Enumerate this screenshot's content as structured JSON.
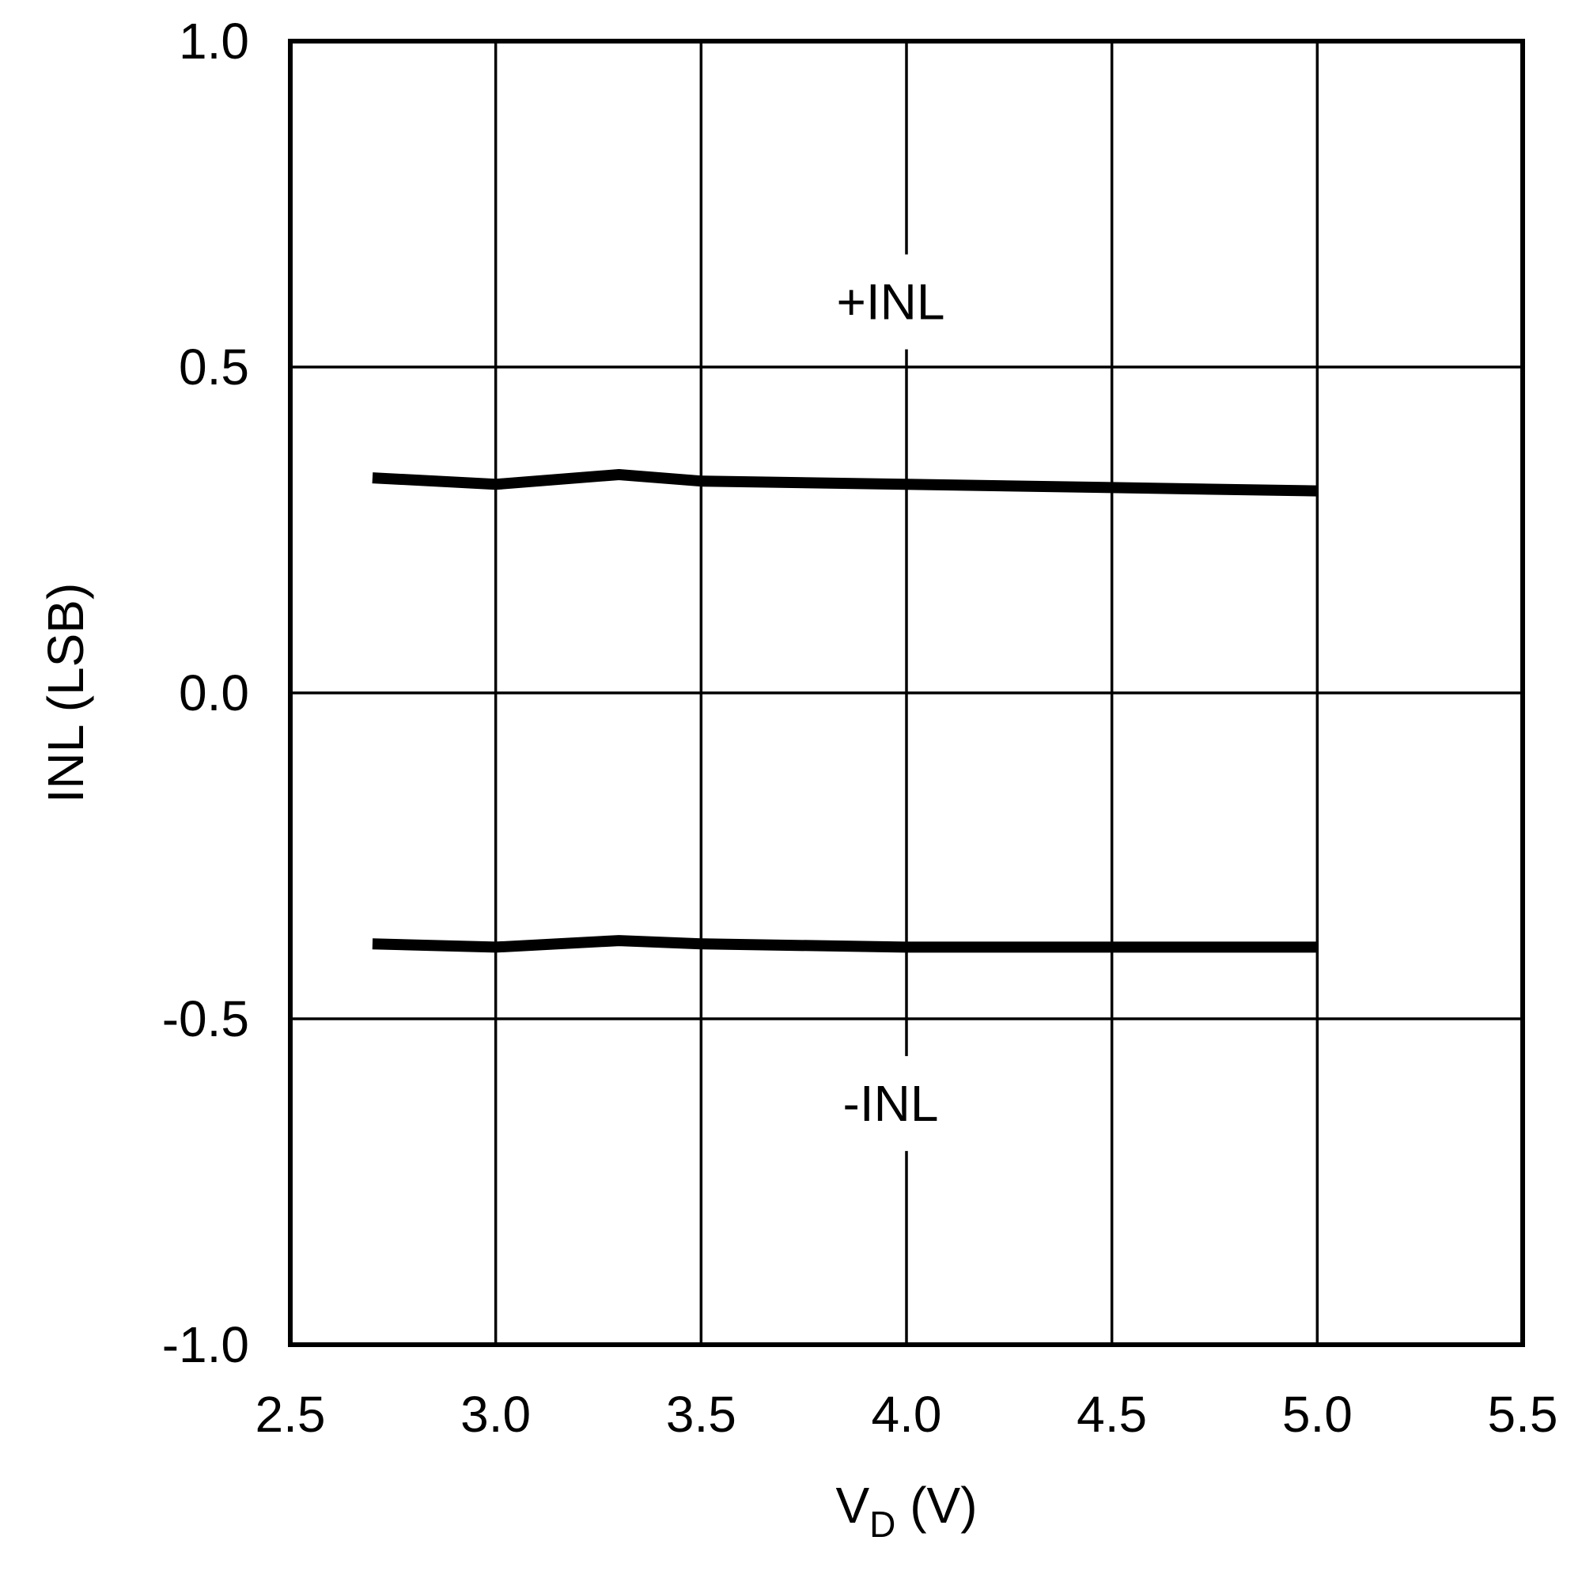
{
  "chart_data": {
    "type": "line",
    "xlabel": {
      "main": "V",
      "sub": "D",
      "unit": " (V)"
    },
    "ylabel": "INL (LSB)",
    "xlim": [
      2.5,
      5.5
    ],
    "ylim": [
      -1.0,
      1.0
    ],
    "xticks": [
      "2.5",
      "3.0",
      "3.5",
      "4.0",
      "4.5",
      "5.0",
      "5.5"
    ],
    "yticks": [
      "1.0",
      "0.5",
      "0.0",
      "-0.5",
      "-1.0"
    ],
    "grid": true,
    "series": [
      {
        "name": "+INL",
        "x": [
          2.7,
          3.0,
          3.3,
          3.5,
          4.0,
          4.5,
          5.0
        ],
        "y": [
          0.33,
          0.32,
          0.335,
          0.325,
          0.32,
          0.315,
          0.31
        ]
      },
      {
        "name": "-INL",
        "x": [
          2.7,
          3.0,
          3.3,
          3.5,
          4.0,
          4.5,
          5.0
        ],
        "y": [
          -0.385,
          -0.39,
          -0.38,
          -0.385,
          -0.39,
          -0.39,
          -0.39
        ]
      }
    ],
    "annotations": [
      {
        "text": "+INL",
        "x": 4.0,
        "y": 0.6
      },
      {
        "text": "-INL",
        "x": 4.0,
        "y": -0.63
      }
    ],
    "colors": {
      "line": "#000000",
      "grid": "#000000",
      "background": "#ffffff"
    }
  }
}
